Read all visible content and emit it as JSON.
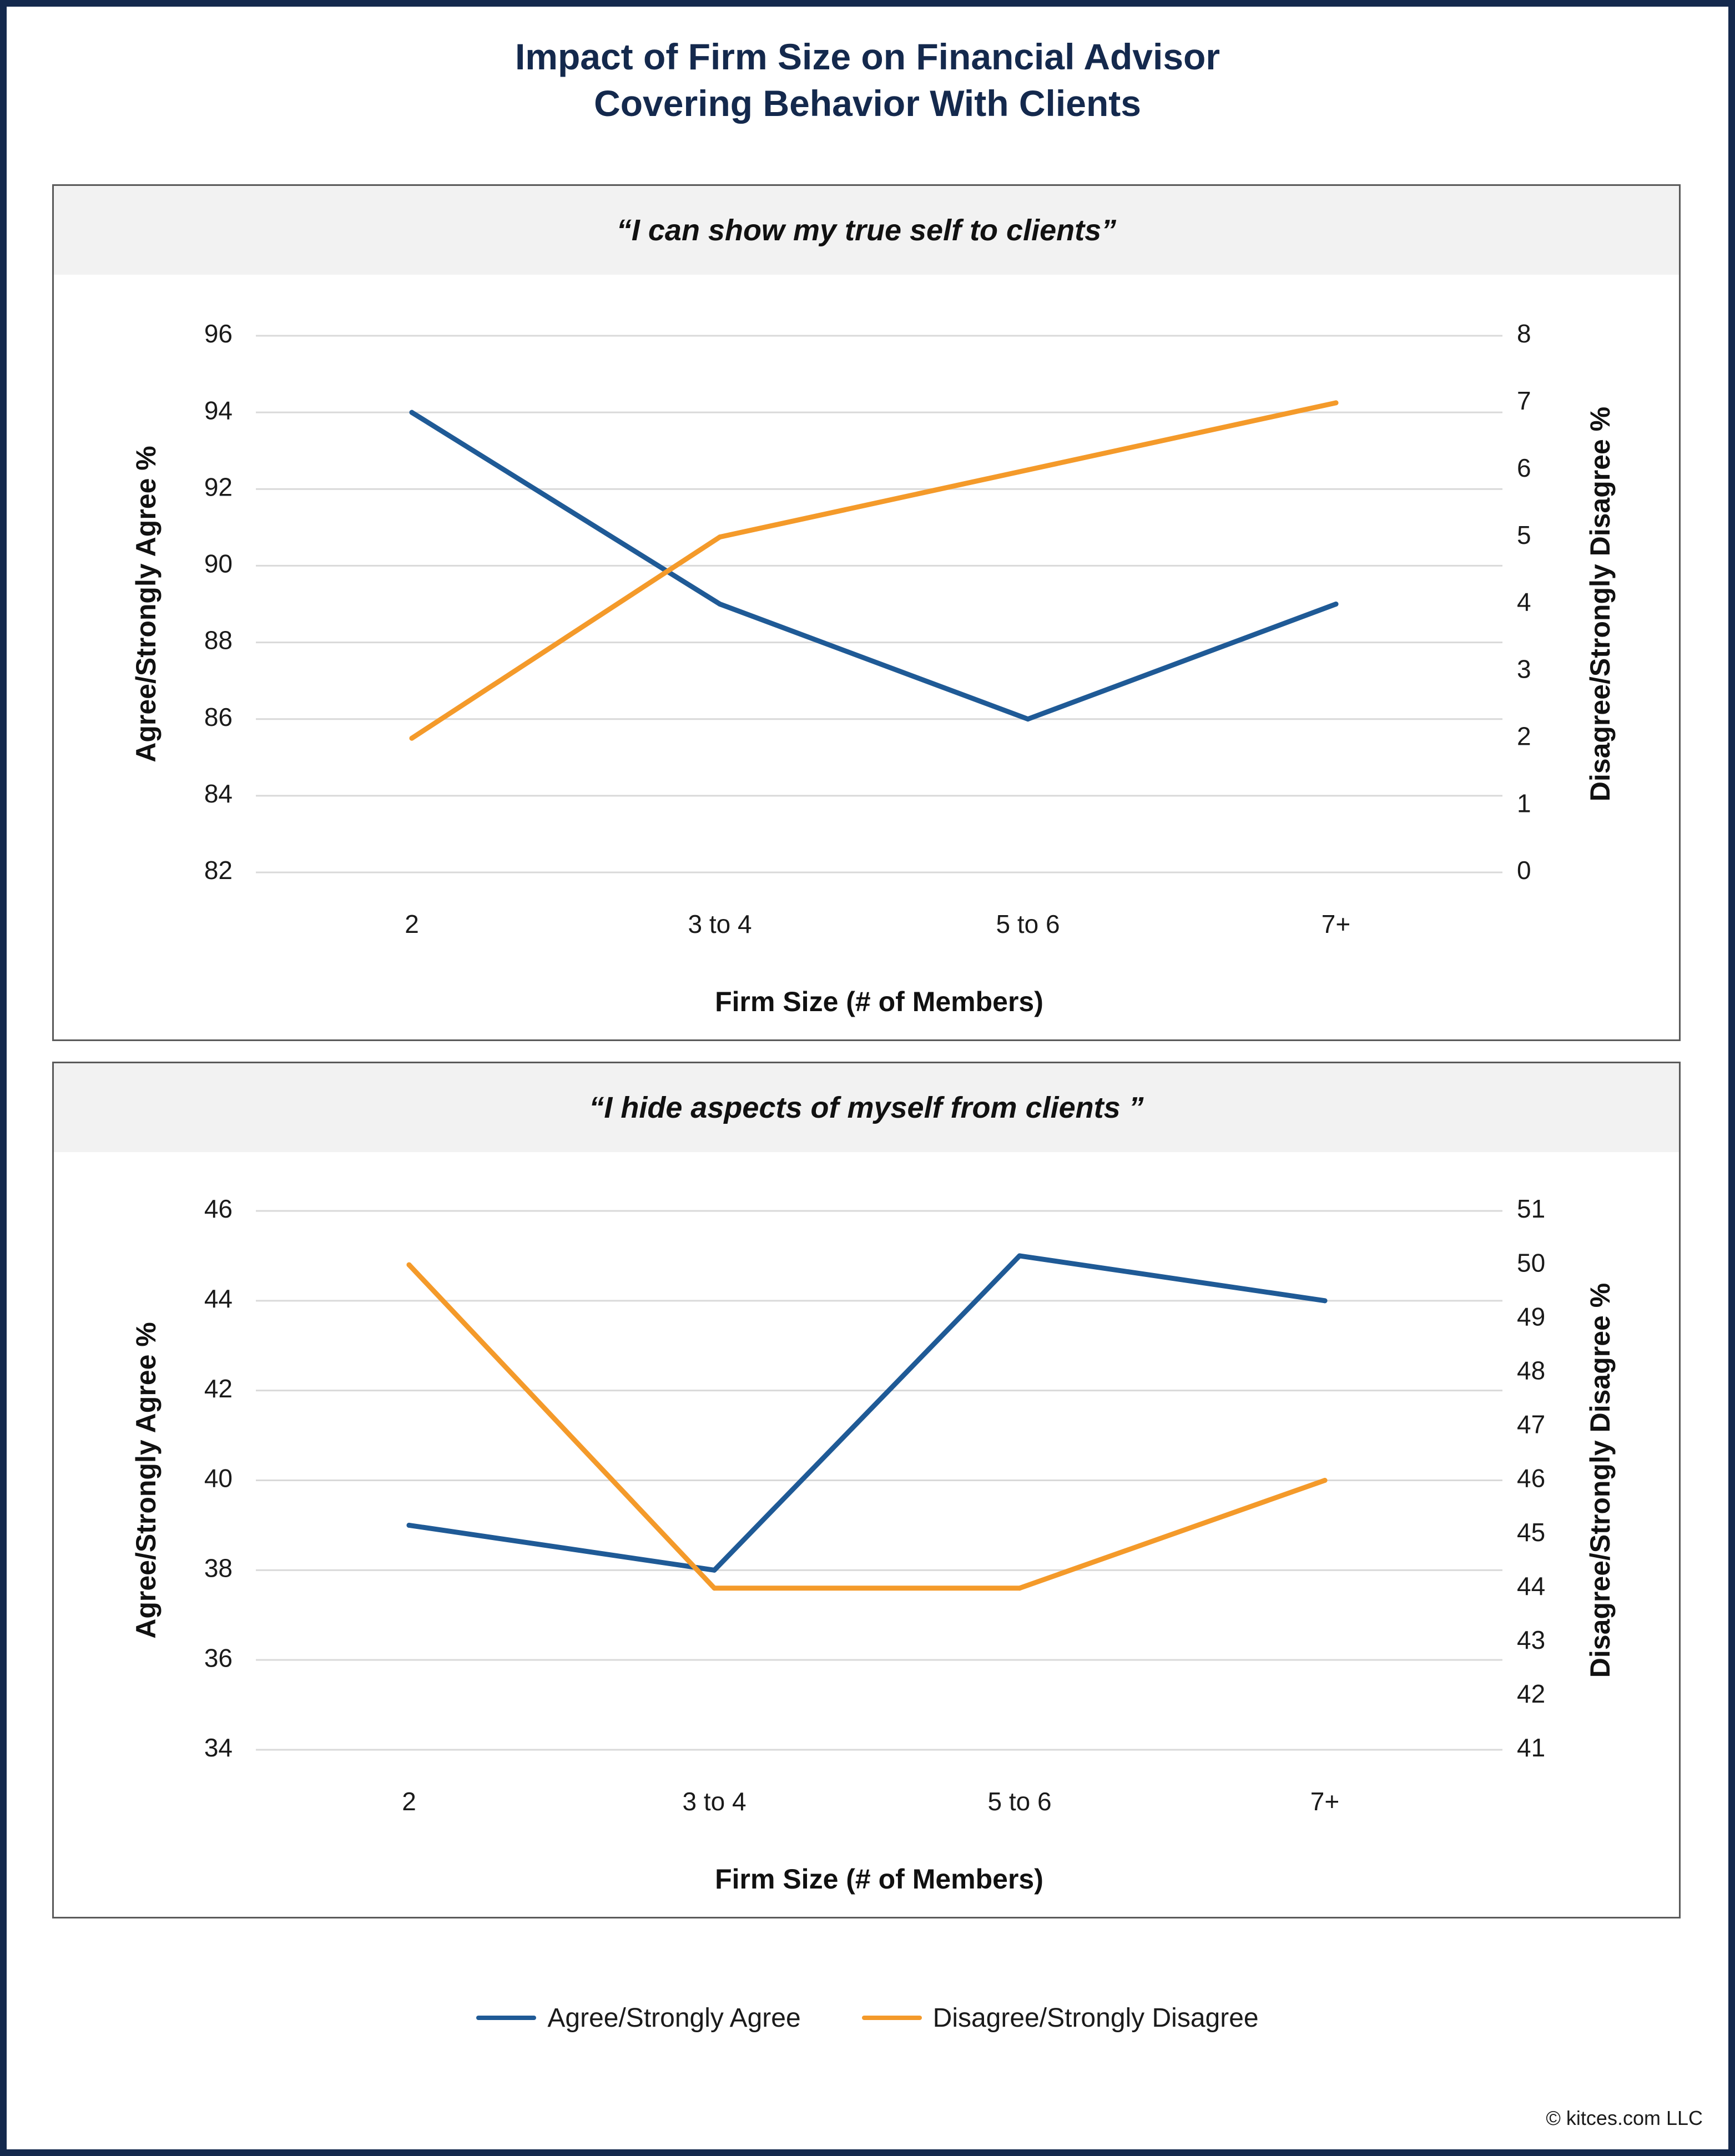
{
  "page": {
    "title_line1": "Impact of Firm Size on Financial Advisor",
    "title_line2": "Covering Behavior With Clients",
    "footer": "© kitces.com LLC"
  },
  "legend": [
    {
      "label": "Agree/Strongly Agree",
      "color": "#1f5a96"
    },
    {
      "label": "Disagree/Strongly Disagree",
      "color": "#f49a2a"
    }
  ],
  "chart_data": [
    {
      "type": "line",
      "title": "“I can show my true self to clients”",
      "xlabel": "Firm Size (# of Members)",
      "ylabel_left": "Agree/Strongly Agree %",
      "ylabel_right": "Disagree/Strongly Disagree %",
      "categories": [
        "2",
        "3 to 4",
        "5 to 6",
        "7+"
      ],
      "ylim_left": [
        82,
        96
      ],
      "yticks_left": [
        82,
        84,
        86,
        88,
        90,
        92,
        94,
        96
      ],
      "ylim_right": [
        0,
        8
      ],
      "yticks_right": [
        0,
        1,
        2,
        3,
        4,
        5,
        6,
        7,
        8
      ],
      "grid": true,
      "series": [
        {
          "name": "Agree/Strongly Agree",
          "axis": "left",
          "color": "#1f5a96",
          "values": [
            94,
            89,
            86,
            89
          ]
        },
        {
          "name": "Disagree/Strongly Disagree",
          "axis": "right",
          "color": "#f49a2a",
          "values": [
            2,
            5,
            6,
            7
          ]
        }
      ]
    },
    {
      "type": "line",
      "title": "“I hide aspects of myself from clients ”",
      "xlabel": "Firm Size (# of Members)",
      "ylabel_left": "Agree/Strongly Agree %",
      "ylabel_right": "Disagree/Strongly Disagree %",
      "categories": [
        "2",
        "3 to 4",
        "5 to 6",
        "7+"
      ],
      "ylim_left": [
        34,
        46
      ],
      "yticks_left": [
        34,
        36,
        38,
        40,
        42,
        44,
        46
      ],
      "ylim_right": [
        41,
        51
      ],
      "yticks_right": [
        41,
        42,
        43,
        44,
        45,
        46,
        47,
        48,
        49,
        50,
        51
      ],
      "grid": true,
      "series": [
        {
          "name": "Agree/Strongly Agree",
          "axis": "left",
          "color": "#1f5a96",
          "values": [
            39,
            38,
            45,
            44
          ]
        },
        {
          "name": "Disagree/Strongly Disagree",
          "axis": "right",
          "color": "#f49a2a",
          "values": [
            50,
            44,
            44,
            46
          ]
        }
      ]
    }
  ]
}
